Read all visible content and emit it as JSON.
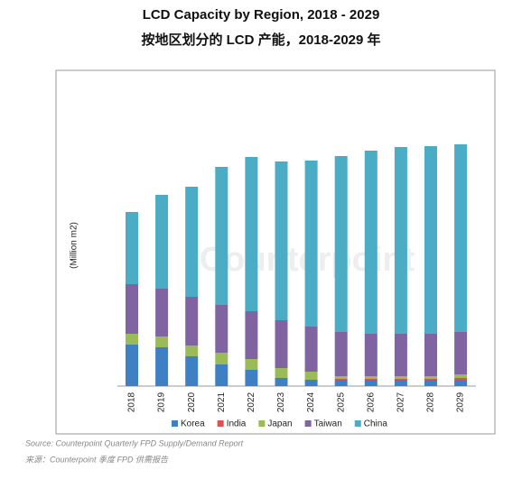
{
  "chart_data": {
    "type": "stacked_bar",
    "title": "LCD Capacity by Region, 2018 - 2029",
    "subtitle": "按地区划分的 LCD 产能，2018-2029 年",
    "y_label": "(Million m2)",
    "watermark": "Counterpoint",
    "categories": [
      "2018",
      "2019",
      "2020",
      "2021",
      "2022",
      "2023",
      "2024",
      "2025",
      "2026",
      "2027",
      "2028",
      "2029"
    ],
    "ylim": [
      0,
      350
    ],
    "series": [
      {
        "name": "Korea",
        "color": "#3f7fc4",
        "values": [
          46,
          43,
          33,
          24,
          18,
          9,
          7,
          7,
          7,
          7,
          7,
          7
        ]
      },
      {
        "name": "India",
        "color": "#e05050",
        "values": [
          0,
          0,
          0,
          0,
          0,
          0,
          0,
          1,
          1,
          1,
          1,
          2
        ]
      },
      {
        "name": "Japan",
        "color": "#9bbb59",
        "values": [
          12,
          12,
          12,
          13,
          12,
          11,
          9,
          3,
          3,
          3,
          3,
          4
        ]
      },
      {
        "name": "Taiwan",
        "color": "#8064a2",
        "values": [
          55,
          53,
          54,
          53,
          53,
          53,
          50,
          49,
          47,
          47,
          47,
          47
        ]
      },
      {
        "name": "China",
        "color": "#4bacc6",
        "values": [
          80,
          104,
          122,
          153,
          171,
          176,
          184,
          195,
          203,
          207,
          208,
          208
        ]
      }
    ],
    "source": "Source: Counterpoint Quarterly FPD Supply/Demand Report",
    "source_cn": "来源：Counterpoint 季度 FPD 供需报告"
  }
}
